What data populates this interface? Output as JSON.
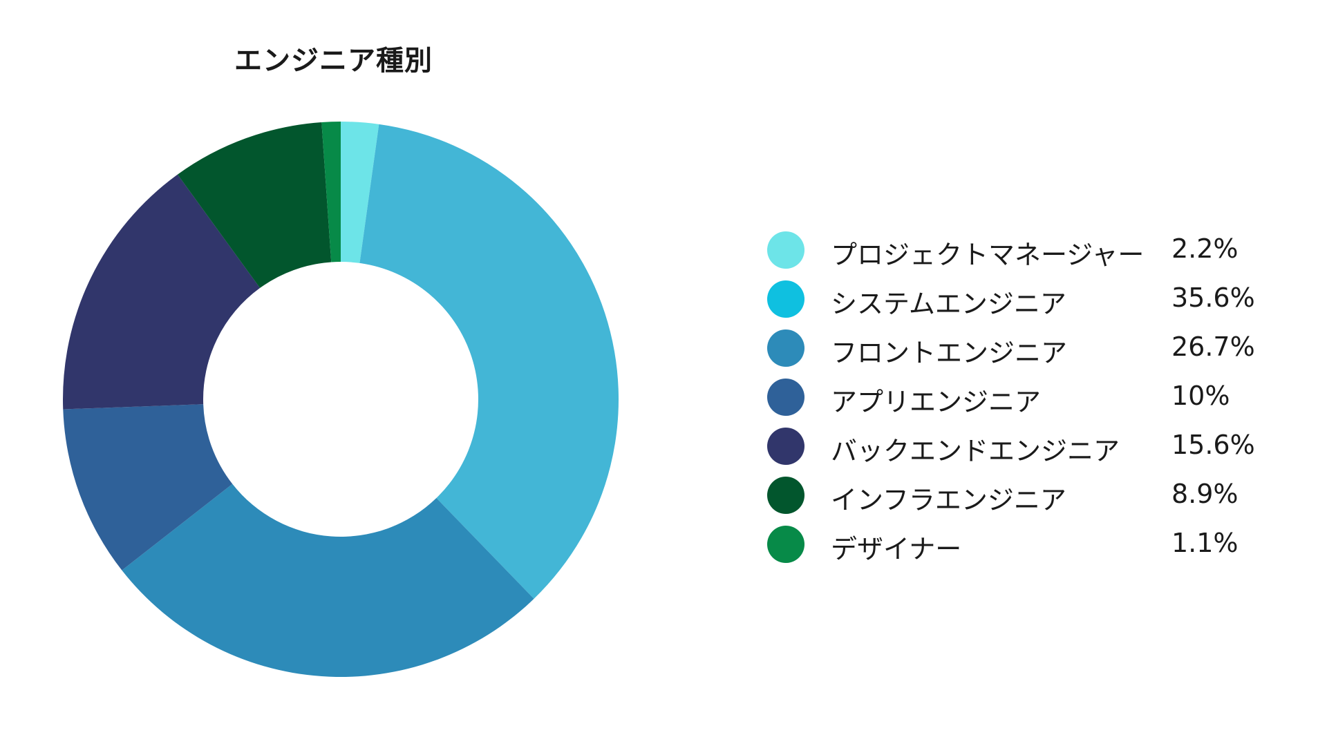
{
  "chart_data": {
    "type": "pie",
    "title": "エンジニア種別",
    "donut": true,
    "legend_position": "right",
    "categories": [
      "プロジェクトマネージャー",
      "システムエンジニア",
      "フロントエンジニア",
      "アプリエンジニア",
      "バックエンドエンジニア",
      "インフラエンジニア",
      "デザイナー"
    ],
    "values": [
      2.2,
      35.6,
      26.7,
      10,
      15.6,
      8.9,
      1.1
    ],
    "value_labels": [
      "2.2%",
      "35.6%",
      "26.7%",
      "10%",
      "15.6%",
      "8.9%",
      "1.1%"
    ],
    "colors": [
      "#6de4e8",
      "#43b6d6",
      "#2d8bb9",
      "#2f6199",
      "#31366b",
      "#02562d",
      "#078a48"
    ],
    "legend_colors": [
      "#6de4e8",
      "#0fc0e0",
      "#2d8bb9",
      "#2f6199",
      "#31366b",
      "#02562d",
      "#078a48"
    ]
  }
}
